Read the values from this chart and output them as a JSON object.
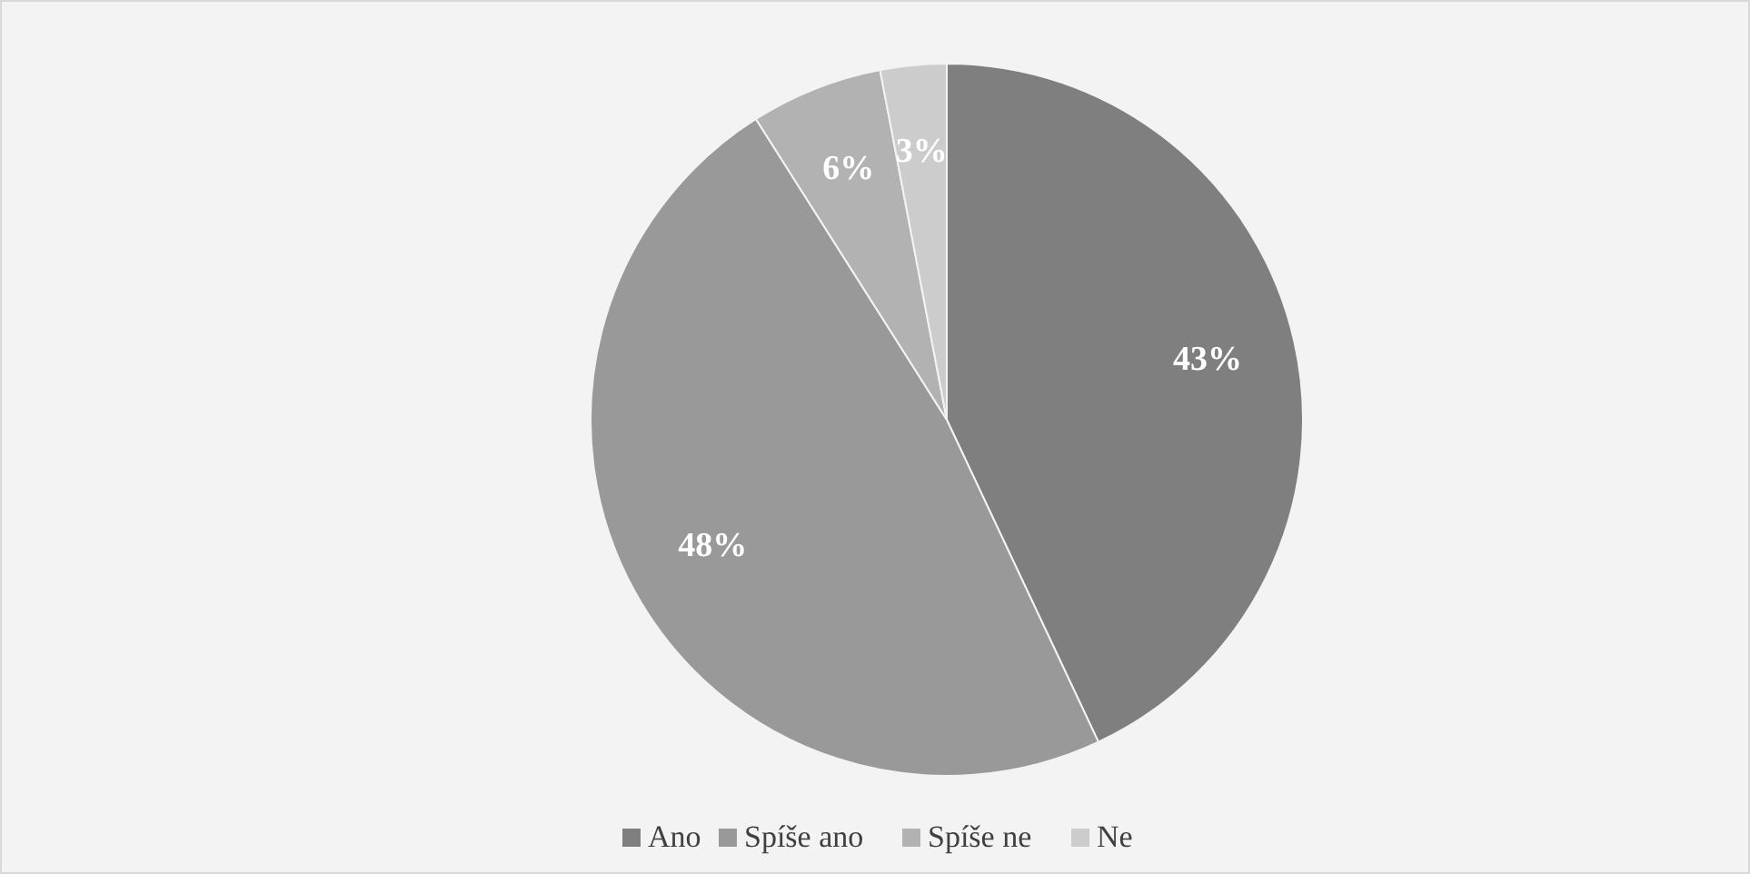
{
  "chart_data": {
    "type": "pie",
    "categories": [
      "Ano",
      "Spíše ano",
      "Spíše ne",
      "Ne"
    ],
    "values": [
      43,
      48,
      6,
      3
    ],
    "colors": [
      "#7f7f7f",
      "#999999",
      "#b2b2b2",
      "#cccccc"
    ],
    "value_labels": [
      "43%",
      "48%",
      "6%",
      "3%"
    ],
    "legend": "bottom"
  }
}
